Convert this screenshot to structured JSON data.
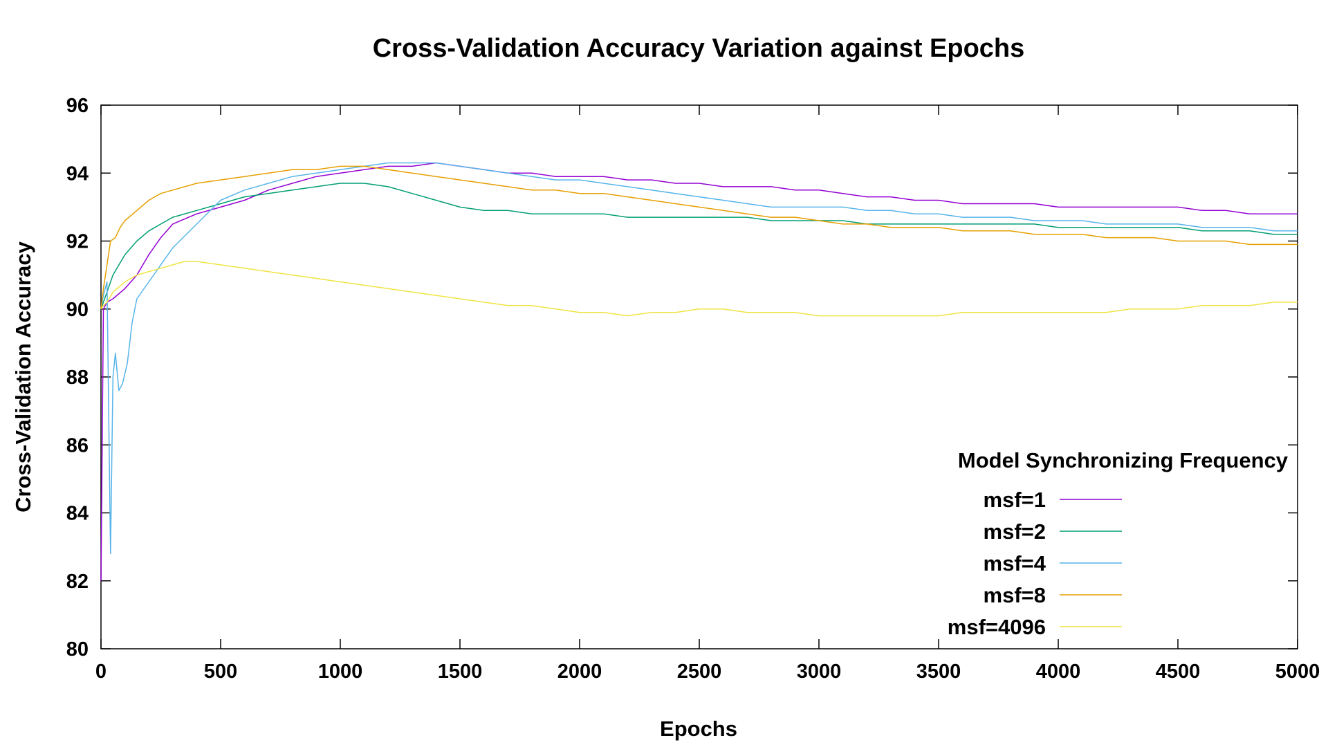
{
  "chart_data": {
    "type": "line",
    "title": "Cross-Validation Accuracy Variation against Epochs",
    "xlabel": "Epochs",
    "ylabel": "Cross-Validation Accuracy",
    "xlim": [
      0,
      5000
    ],
    "ylim": [
      80,
      96
    ],
    "x_ticks": [
      0,
      500,
      1000,
      1500,
      2000,
      2500,
      3000,
      3500,
      4000,
      4500,
      5000
    ],
    "y_ticks": [
      80,
      82,
      84,
      86,
      88,
      90,
      92,
      94,
      96
    ],
    "grid": false,
    "legend_title": "Model Synchronizing Frequency",
    "legend_position": "bottom-right",
    "series": [
      {
        "name": "msf=1",
        "color": "#9400d3",
        "x": [
          0,
          10,
          25,
          50,
          100,
          150,
          200,
          250,
          300,
          400,
          500,
          600,
          700,
          800,
          900,
          1000,
          1100,
          1200,
          1300,
          1400,
          1500,
          1600,
          1700,
          1800,
          1900,
          2000,
          2100,
          2200,
          2300,
          2400,
          2500,
          2600,
          2700,
          2800,
          2900,
          3000,
          3100,
          3200,
          3300,
          3400,
          3500,
          3600,
          3700,
          3800,
          3900,
          4000,
          4100,
          4200,
          4300,
          4400,
          4500,
          4600,
          4700,
          4800,
          4900,
          5000
        ],
        "y": [
          82.0,
          90.0,
          90.2,
          90.3,
          90.6,
          91.0,
          91.6,
          92.1,
          92.5,
          92.8,
          93.0,
          93.2,
          93.5,
          93.7,
          93.9,
          94.0,
          94.1,
          94.2,
          94.2,
          94.3,
          94.2,
          94.1,
          94.0,
          94.0,
          93.9,
          93.9,
          93.9,
          93.8,
          93.8,
          93.7,
          93.7,
          93.6,
          93.6,
          93.6,
          93.5,
          93.5,
          93.4,
          93.3,
          93.3,
          93.2,
          93.2,
          93.1,
          93.1,
          93.1,
          93.1,
          93.0,
          93.0,
          93.0,
          93.0,
          93.0,
          93.0,
          92.9,
          92.9,
          92.8,
          92.8,
          92.8
        ]
      },
      {
        "name": "msf=2",
        "color": "#009e73",
        "x": [
          0,
          10,
          25,
          50,
          100,
          150,
          200,
          250,
          300,
          400,
          500,
          600,
          700,
          800,
          900,
          1000,
          1100,
          1200,
          1300,
          1400,
          1500,
          1600,
          1700,
          1800,
          1900,
          2000,
          2100,
          2200,
          2300,
          2400,
          2500,
          2600,
          2700,
          2800,
          2900,
          3000,
          3100,
          3200,
          3300,
          3400,
          3500,
          3600,
          3700,
          3800,
          3900,
          4000,
          4100,
          4200,
          4300,
          4400,
          4500,
          4600,
          4700,
          4800,
          4900,
          5000
        ],
        "y": [
          90.0,
          90.2,
          90.5,
          91.0,
          91.6,
          92.0,
          92.3,
          92.5,
          92.7,
          92.9,
          93.1,
          93.3,
          93.4,
          93.5,
          93.6,
          93.7,
          93.7,
          93.6,
          93.4,
          93.2,
          93.0,
          92.9,
          92.9,
          92.8,
          92.8,
          92.8,
          92.8,
          92.7,
          92.7,
          92.7,
          92.7,
          92.7,
          92.7,
          92.6,
          92.6,
          92.6,
          92.6,
          92.5,
          92.5,
          92.5,
          92.5,
          92.5,
          92.5,
          92.5,
          92.5,
          92.4,
          92.4,
          92.4,
          92.4,
          92.4,
          92.4,
          92.3,
          92.3,
          92.3,
          92.2,
          92.2
        ]
      },
      {
        "name": "msf=4",
        "color": "#56b4e9",
        "x": [
          0,
          10,
          25,
          40,
          50,
          60,
          75,
          90,
          110,
          130,
          150,
          200,
          250,
          300,
          400,
          500,
          600,
          700,
          800,
          900,
          1000,
          1100,
          1200,
          1300,
          1400,
          1500,
          1600,
          1700,
          1800,
          1900,
          2000,
          2100,
          2200,
          2300,
          2400,
          2500,
          2600,
          2700,
          2800,
          2900,
          3000,
          3100,
          3200,
          3300,
          3400,
          3500,
          3600,
          3700,
          3800,
          3900,
          4000,
          4100,
          4200,
          4300,
          4400,
          4500,
          4600,
          4700,
          4800,
          4900,
          5000
        ],
        "y": [
          90.0,
          90.4,
          90.8,
          82.8,
          88.0,
          88.7,
          87.6,
          87.8,
          88.4,
          89.6,
          90.3,
          90.8,
          91.3,
          91.8,
          92.5,
          93.2,
          93.5,
          93.7,
          93.9,
          94.0,
          94.1,
          94.2,
          94.3,
          94.3,
          94.3,
          94.2,
          94.1,
          94.0,
          93.9,
          93.8,
          93.8,
          93.7,
          93.6,
          93.5,
          93.4,
          93.3,
          93.2,
          93.1,
          93.0,
          93.0,
          93.0,
          93.0,
          92.9,
          92.9,
          92.8,
          92.8,
          92.7,
          92.7,
          92.7,
          92.6,
          92.6,
          92.6,
          92.5,
          92.5,
          92.5,
          92.5,
          92.4,
          92.4,
          92.4,
          92.3,
          92.3
        ]
      },
      {
        "name": "msf=8",
        "color": "#e69f00",
        "x": [
          0,
          10,
          25,
          40,
          60,
          80,
          100,
          150,
          200,
          250,
          300,
          400,
          500,
          600,
          700,
          800,
          900,
          1000,
          1100,
          1200,
          1300,
          1400,
          1500,
          1600,
          1700,
          1800,
          1900,
          2000,
          2100,
          2200,
          2300,
          2400,
          2500,
          2600,
          2700,
          2800,
          2900,
          3000,
          3100,
          3200,
          3300,
          3400,
          3500,
          3600,
          3700,
          3800,
          3900,
          4000,
          4100,
          4200,
          4300,
          4400,
          4500,
          4600,
          4700,
          4800,
          4900,
          5000
        ],
        "y": [
          90.0,
          90.6,
          91.3,
          92.0,
          92.1,
          92.4,
          92.6,
          92.9,
          93.2,
          93.4,
          93.5,
          93.7,
          93.8,
          93.9,
          94.0,
          94.1,
          94.1,
          94.2,
          94.2,
          94.1,
          94.0,
          93.9,
          93.8,
          93.7,
          93.6,
          93.5,
          93.5,
          93.4,
          93.4,
          93.3,
          93.2,
          93.1,
          93.0,
          92.9,
          92.8,
          92.7,
          92.7,
          92.6,
          92.5,
          92.5,
          92.4,
          92.4,
          92.4,
          92.3,
          92.3,
          92.3,
          92.2,
          92.2,
          92.2,
          92.1,
          92.1,
          92.1,
          92.0,
          92.0,
          92.0,
          91.9,
          91.9,
          91.9
        ]
      },
      {
        "name": "msf=4096",
        "color": "#f0e442",
        "x": [
          0,
          10,
          25,
          50,
          100,
          150,
          200,
          250,
          300,
          350,
          400,
          500,
          600,
          700,
          800,
          900,
          1000,
          1100,
          1200,
          1300,
          1400,
          1500,
          1600,
          1700,
          1800,
          1900,
          2000,
          2100,
          2200,
          2300,
          2400,
          2500,
          2600,
          2700,
          2800,
          2900,
          3000,
          3100,
          3200,
          3300,
          3400,
          3500,
          3600,
          3700,
          3800,
          3900,
          4000,
          4100,
          4200,
          4300,
          4400,
          4500,
          4600,
          4700,
          4800,
          4900,
          5000
        ],
        "y": [
          90.0,
          90.1,
          90.2,
          90.5,
          90.8,
          91.0,
          91.1,
          91.2,
          91.3,
          91.4,
          91.4,
          91.3,
          91.2,
          91.1,
          91.0,
          90.9,
          90.8,
          90.7,
          90.6,
          90.5,
          90.4,
          90.3,
          90.2,
          90.1,
          90.1,
          90.0,
          89.9,
          89.9,
          89.8,
          89.9,
          89.9,
          90.0,
          90.0,
          89.9,
          89.9,
          89.9,
          89.8,
          89.8,
          89.8,
          89.8,
          89.8,
          89.8,
          89.9,
          89.9,
          89.9,
          89.9,
          89.9,
          89.9,
          89.9,
          90.0,
          90.0,
          90.0,
          90.1,
          90.1,
          90.1,
          90.2,
          90.2
        ]
      }
    ]
  }
}
